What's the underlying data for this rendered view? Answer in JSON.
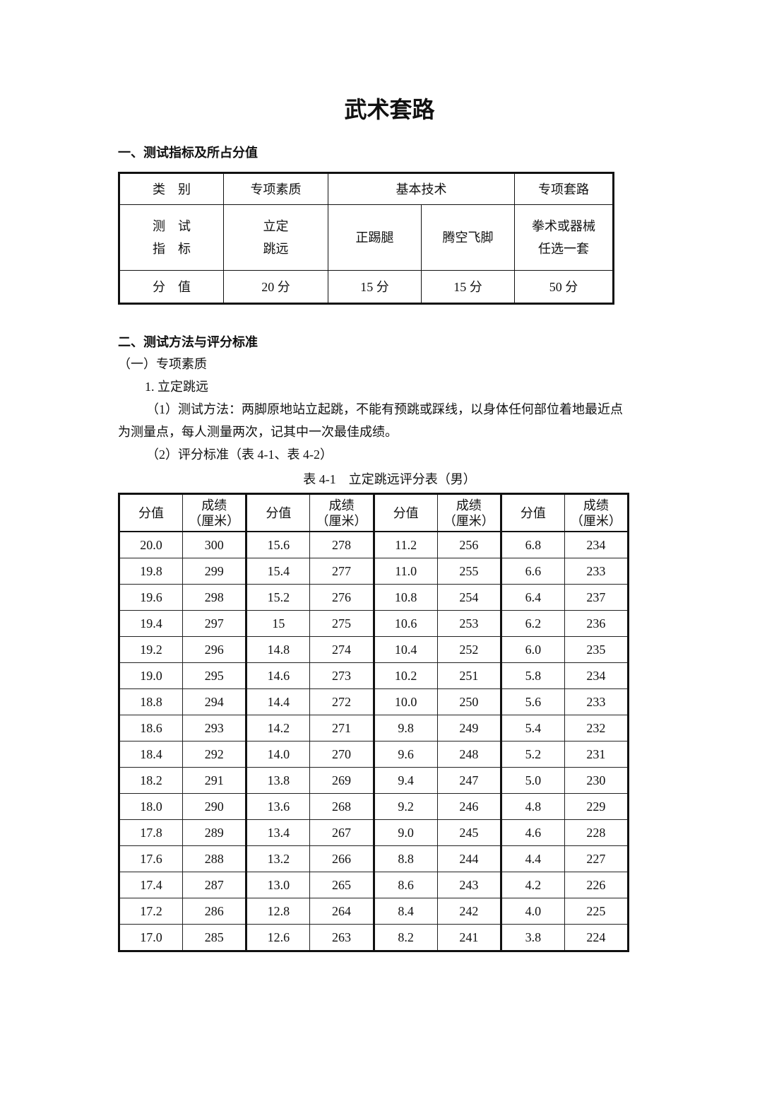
{
  "title": "武术套路",
  "section1": {
    "heading": "一、测试指标及所占分值",
    "table": {
      "row1": [
        "类　别",
        "专项素质",
        "基本技术",
        "专项套路"
      ],
      "row2": {
        "label_line1": "测　试",
        "label_line2": "指　标",
        "c1_line1": "立定",
        "c1_line2": "跳远",
        "c2": "正踢腿",
        "c3": "腾空飞脚",
        "c4_line1": "拳术或器械",
        "c4_line2": "任选一套"
      },
      "row3": [
        "分　值",
        "20 分",
        "15 分",
        "15 分",
        "50 分"
      ]
    }
  },
  "section2": {
    "heading": "二、测试方法与评分标准",
    "sub1": "（一）专项素质",
    "item1": "1. 立定跳远",
    "method_line1": "（1）测试方法：两脚原地站立起跳，不能有预跳或踩线，以身体任何部位着地最近点",
    "method_line2": "为测量点，每人测量两次，记其中一次最佳成绩。",
    "standard": "（2）评分标准（表 4-1、表 4-2）",
    "caption": "表 4-1　立定跳远评分表（男）",
    "table": {
      "header_score": "分值",
      "header_result_line1": "成绩",
      "header_result_line2": "（厘米）",
      "rows": [
        [
          "20.0",
          "300",
          "15.6",
          "278",
          "11.2",
          "256",
          "6.8",
          "234"
        ],
        [
          "19.8",
          "299",
          "15.4",
          "277",
          "11.0",
          "255",
          "6.6",
          "233"
        ],
        [
          "19.6",
          "298",
          "15.2",
          "276",
          "10.8",
          "254",
          "6.4",
          "237"
        ],
        [
          "19.4",
          "297",
          "15",
          "275",
          "10.6",
          "253",
          "6.2",
          "236"
        ],
        [
          "19.2",
          "296",
          "14.8",
          "274",
          "10.4",
          "252",
          "6.0",
          "235"
        ],
        [
          "19.0",
          "295",
          "14.6",
          "273",
          "10.2",
          "251",
          "5.8",
          "234"
        ],
        [
          "18.8",
          "294",
          "14.4",
          "272",
          "10.0",
          "250",
          "5.6",
          "233"
        ],
        [
          "18.6",
          "293",
          "14.2",
          "271",
          "9.8",
          "249",
          "5.4",
          "232"
        ],
        [
          "18.4",
          "292",
          "14.0",
          "270",
          "9.6",
          "248",
          "5.2",
          "231"
        ],
        [
          "18.2",
          "291",
          "13.8",
          "269",
          "9.4",
          "247",
          "5.0",
          "230"
        ],
        [
          "18.0",
          "290",
          "13.6",
          "268",
          "9.2",
          "246",
          "4.8",
          "229"
        ],
        [
          "17.8",
          "289",
          "13.4",
          "267",
          "9.0",
          "245",
          "4.6",
          "228"
        ],
        [
          "17.6",
          "288",
          "13.2",
          "266",
          "8.8",
          "244",
          "4.4",
          "227"
        ],
        [
          "17.4",
          "287",
          "13.0",
          "265",
          "8.6",
          "243",
          "4.2",
          "226"
        ],
        [
          "17.2",
          "286",
          "12.8",
          "264",
          "8.4",
          "242",
          "4.0",
          "225"
        ],
        [
          "17.0",
          "285",
          "12.6",
          "263",
          "8.2",
          "241",
          "3.8",
          "224"
        ]
      ]
    }
  }
}
